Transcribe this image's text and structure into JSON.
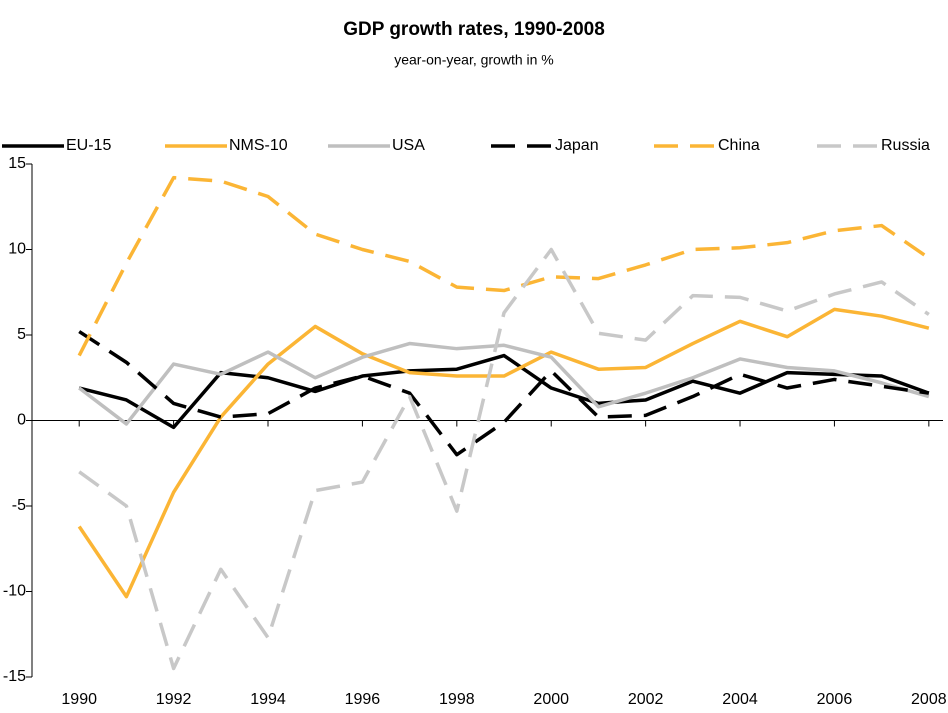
{
  "chart_data": {
    "type": "line",
    "title": "GDP growth rates, 1990-2008",
    "subtitle": "year-on-year, growth in %",
    "x": [
      1990,
      1991,
      1992,
      1993,
      1994,
      1995,
      1996,
      1997,
      1998,
      1999,
      2000,
      2001,
      2002,
      2003,
      2004,
      2005,
      2006,
      2007,
      2008
    ],
    "xlim": [
      1989,
      2008.3
    ],
    "xticks": [
      1990,
      1992,
      1994,
      1996,
      1998,
      2000,
      2002,
      2004,
      2006,
      2008
    ],
    "ylim": [
      -15,
      15
    ],
    "yticks": [
      -15,
      -10,
      -5,
      0,
      5,
      10,
      15
    ],
    "grid": false,
    "legend": "top",
    "series": [
      {
        "name": "EU-15",
        "color": "#000000",
        "dashed": false,
        "values": [
          1.9,
          1.2,
          -0.4,
          2.8,
          2.5,
          1.7,
          2.6,
          2.9,
          3.0,
          3.8,
          1.9,
          1.0,
          1.2,
          2.3,
          1.6,
          2.8,
          2.7,
          2.6,
          1.6
        ]
      },
      {
        "name": "NMS-10",
        "color": "#fbb535",
        "dashed": false,
        "values": [
          -6.2,
          -10.3,
          -4.2,
          0.2,
          3.3,
          5.5,
          3.9,
          2.8,
          2.6,
          2.6,
          4.0,
          3.0,
          3.1,
          4.5,
          5.8,
          4.9,
          6.5,
          6.1,
          5.4
        ]
      },
      {
        "name": "USA",
        "color": "#bfbfbf",
        "dashed": false,
        "values": [
          1.9,
          -0.2,
          3.3,
          2.7,
          4.0,
          2.5,
          3.7,
          4.5,
          4.2,
          4.4,
          3.7,
          0.8,
          1.6,
          2.5,
          3.6,
          3.1,
          2.9,
          2.2,
          1.4
        ]
      },
      {
        "name": "Japan",
        "color": "#000000",
        "dashed": true,
        "values": [
          5.2,
          3.4,
          1.0,
          0.2,
          0.4,
          1.9,
          2.6,
          1.6,
          -2.0,
          -0.1,
          2.9,
          0.2,
          0.3,
          1.4,
          2.7,
          1.9,
          2.4,
          2.0,
          1.6
        ]
      },
      {
        "name": "China",
        "color": "#fbb535",
        "dashed": true,
        "values": [
          3.8,
          9.2,
          14.2,
          14.0,
          13.1,
          10.9,
          10.0,
          9.3,
          7.8,
          7.6,
          8.4,
          8.3,
          9.1,
          10.0,
          10.1,
          10.4,
          11.1,
          11.4,
          9.5
        ]
      },
      {
        "name": "Russia",
        "color": "#c8c8c8",
        "dashed": true,
        "values": [
          -3.0,
          -5.0,
          -14.5,
          -8.7,
          -12.7,
          -4.1,
          -3.6,
          1.4,
          -5.3,
          6.3,
          10.0,
          5.1,
          4.7,
          7.3,
          7.2,
          6.4,
          7.4,
          8.1,
          6.2
        ]
      }
    ]
  }
}
